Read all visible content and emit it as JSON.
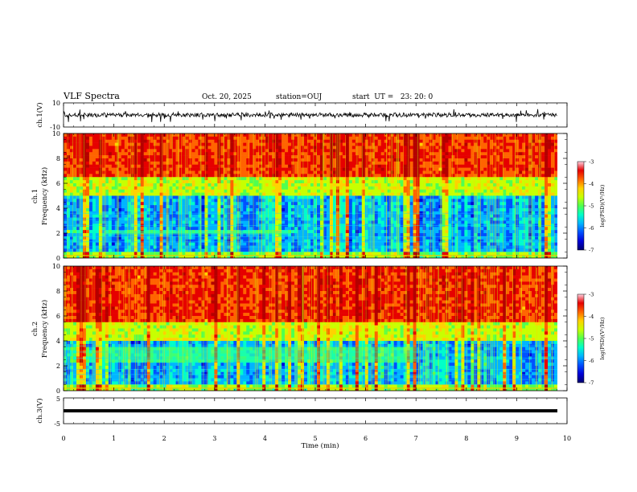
{
  "header": {
    "title": "VLF Spectra",
    "date": "Oct. 20, 2025",
    "station": "station=OUJ",
    "start": "start  UT =   23: 20: 0"
  },
  "chart_data": [
    {
      "type": "line",
      "panel": "ch.1 waveform",
      "ylabel": "ch.1(V)",
      "ylim": [
        -10,
        10
      ],
      "yticks": [
        "10",
        "-10"
      ],
      "description_values": {
        "baseline_mean_v": 0,
        "typical_range_v": [
          -1.5,
          1.5
        ],
        "spikes_to_v": [
          -6,
          5
        ]
      }
    },
    {
      "type": "heatmap",
      "panel": "ch.1 spectrogram",
      "ylabel": "ch.1 Frequency (kHz)",
      "ylim": [
        0,
        10
      ],
      "yticks": [
        "0",
        "2",
        "4",
        "6",
        "8",
        "10"
      ],
      "colorbar": {
        "label": "log(PSD)(V²/Hz)",
        "range": [
          -7,
          -3
        ],
        "ticks": [
          "-3",
          "-4",
          "-5",
          "-6",
          "-7"
        ]
      },
      "features": {
        "noise_floor_khz": 5,
        "band_khz": [
          1.9,
          2.2
        ],
        "band_end_min": 4.5
      }
    },
    {
      "type": "heatmap",
      "panel": "ch.2 spectrogram",
      "ylabel": "ch.2 Frequency (kHz)",
      "ylim": [
        0,
        10
      ],
      "yticks": [
        "0",
        "2",
        "4",
        "6",
        "8",
        "10"
      ],
      "colorbar": {
        "label": "log(PSD)(V²/Hz)",
        "range": [
          -7,
          -3
        ],
        "ticks": [
          "-3",
          "-4",
          "-5",
          "-6",
          "-7"
        ]
      },
      "features": {
        "noise_floor_khz": 4,
        "band_khz": [
          2.3,
          3.5
        ],
        "band_end_min": 7
      }
    },
    {
      "type": "line",
      "panel": "ch.3 waveform",
      "ylabel": "ch.3(V)",
      "ylim": [
        -5,
        5
      ],
      "yticks": [
        "5",
        "-5"
      ],
      "description_values": {
        "constant_v": 0
      }
    }
  ],
  "xaxis": {
    "label": "Time (min)",
    "range": [
      0,
      10
    ],
    "ticks": [
      "0",
      "1",
      "2",
      "3",
      "4",
      "5",
      "6",
      "7",
      "8",
      "9",
      "10"
    ]
  },
  "colors": {
    "scale": [
      "#00006e",
      "#0000d8",
      "#0050ff",
      "#00b4ff",
      "#00ffc8",
      "#50ff50",
      "#c8ff00",
      "#ffd200",
      "#ff6400",
      "#e60000",
      "#b40000"
    ]
  }
}
